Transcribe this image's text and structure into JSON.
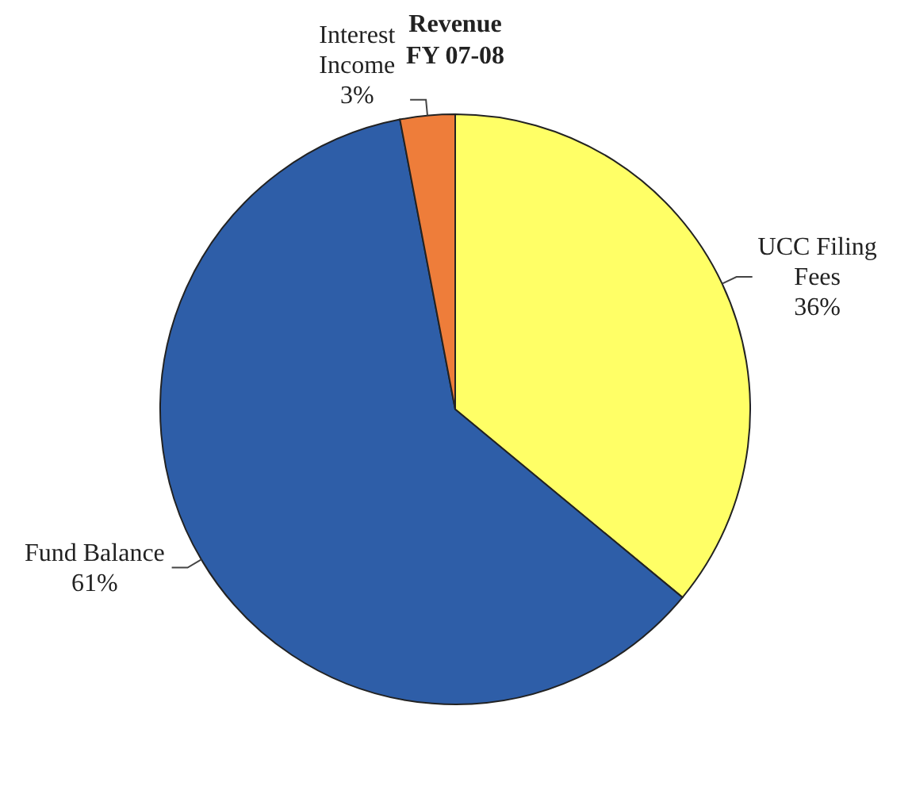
{
  "chart_data": {
    "type": "pie",
    "title": "Revenue",
    "subtitle": "FY 07-08",
    "categories": [
      "UCC Filing Fees",
      "Fund Balance",
      "Interest Income"
    ],
    "values": [
      36,
      61,
      3
    ],
    "value_labels": [
      "36%",
      "61%",
      "3%"
    ],
    "colors": [
      "#ffff66",
      "#2e5ea8",
      "#ee7d3a"
    ],
    "legend": false
  }
}
